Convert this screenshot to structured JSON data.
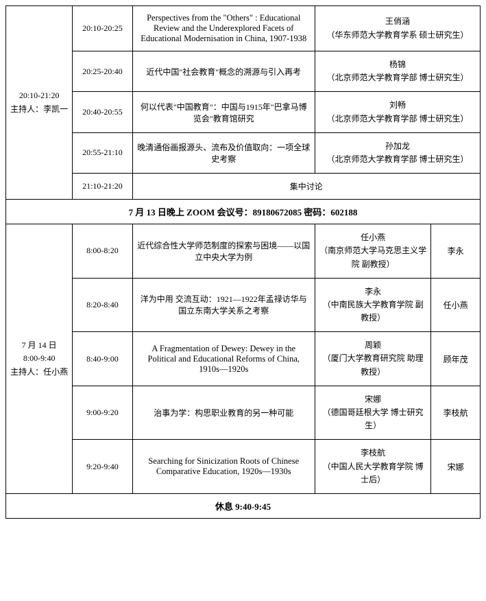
{
  "session1": {
    "header": "20:10-21:20\n主持人：李凯一",
    "rows": [
      {
        "time": "20:10-20:25",
        "title": "Perspectives from the \"Others\" : Educational Review and the Underexplored Facets of Educational Modernisation in China, 1907-1938",
        "title_en": true,
        "presenter_name": "王俏涵",
        "presenter_affil": "（华东师范大学教育学系 硕士研究生）"
      },
      {
        "time": "20:25-20:40",
        "title": "近代中国\"社会教育\"概念的溯源与引入再考",
        "presenter_name": "杨锦",
        "presenter_affil": "（北京师范大学教育学部 博士研究生）"
      },
      {
        "time": "20:40-20:55",
        "title": "何以代表\"中国教育\"：中国与1915年\"巴拿马博览会\"教育馆研究",
        "presenter_name": "刘畅",
        "presenter_affil": "（北京师范大学教育学部 博士研究生）"
      },
      {
        "time": "20:55-21:10",
        "title": "晚清通俗画报源头、流布及价值取向：一项全球史考察",
        "presenter_name": "孙加龙",
        "presenter_affil": "（北京师范大学教育学部 博士研究生）"
      }
    ],
    "discussion_time": "21:10-21:20",
    "discussion_label": "集中讨论"
  },
  "banner": "7 月 13 日晚上 ZOOM 会议号：89180672085 密码：602188",
  "session2": {
    "header": "7 月 14 日\n8:00-9:40\n主持人：任小燕",
    "rows": [
      {
        "time": "8:00-8:20",
        "title": "近代综合性大学师范制度的探索与困境——以国立中央大学为例",
        "presenter_name": "任小燕",
        "presenter_affil": "（南京师范大学马克思主义学院 副教授）",
        "discussant": "李永"
      },
      {
        "time": "8:20-8:40",
        "title": "洋为中用 交流互动：1921—1922年孟禄访华与国立东南大学关系之考察",
        "presenter_name": "李永",
        "presenter_affil": "（中南民族大学教育学院 副教授）",
        "discussant": "任小燕"
      },
      {
        "time": "8:40-9:00",
        "title": "A Fragmentation of Dewey: Dewey in the Political and Educational Reforms of China, 1910s—1920s",
        "title_en": true,
        "presenter_name": "周颖",
        "presenter_affil": "（厦门大学教育研究院 助理教授）",
        "discussant": "顾年茂"
      },
      {
        "time": "9:00-9:20",
        "title": "治事为学：构思职业教育的另一种可能",
        "presenter_name": "宋娜",
        "presenter_affil": "（德国哥廷根大学 博士研究生）",
        "discussant": "李枝航"
      },
      {
        "time": "9:20-9:40",
        "title": "Searching for Sinicization Roots of Chinese Comparative Education, 1920s—1930s",
        "title_en": true,
        "presenter_name": "李枝航",
        "presenter_affil": "（中国人民大学教育学院 博士后）",
        "discussant": "宋娜"
      }
    ]
  },
  "break_label": "休息 9:40-9:45"
}
